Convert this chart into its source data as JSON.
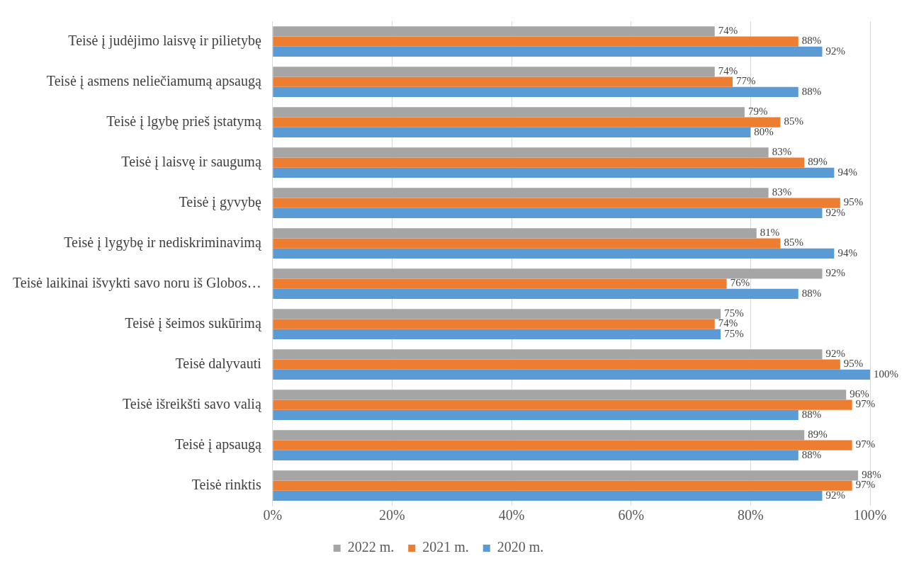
{
  "chart_data": {
    "type": "bar",
    "orientation": "horizontal",
    "categories": [
      "Teisė į judėjimo laisvę ir pilietybę",
      "Teisė į asmens neliečiamumą apsaugą",
      "Teisė į lgybę prieš įstatymą",
      "Teisė į laisvę ir saugumą",
      "Teisė į gyvybę",
      "Teisė į lygybę ir nediskriminavimą",
      "Teisė laikinai išvykti savo noru iš Globos…",
      "Teisė į šeimos sukūrimą",
      "Teisė dalyvauti",
      "Teisė išreikšti savo valią",
      "Teisė į apsaugą",
      "Teisė rinktis"
    ],
    "series": [
      {
        "name": "2022 m.",
        "color": "#a5a5a5",
        "values": [
          74,
          74,
          79,
          83,
          83,
          81,
          92,
          75,
          92,
          96,
          89,
          98
        ],
        "value_labels": [
          "74%",
          "74%",
          "79%",
          "83%",
          "83%",
          "81%",
          "92%",
          "75%",
          "92%",
          "96%",
          "89%",
          "98%"
        ]
      },
      {
        "name": "2021 m.",
        "color": "#ed7d31",
        "values": [
          88,
          77,
          85,
          89,
          95,
          85,
          76,
          74,
          95,
          97,
          97,
          97
        ],
        "value_labels": [
          "88%",
          "77%",
          "85%",
          "89%",
          "95%",
          "85%",
          "76%",
          "74%",
          "95%",
          "97%",
          "97%",
          "97%"
        ]
      },
      {
        "name": "2020 m.",
        "color": "#5b9bd5",
        "values": [
          92,
          88,
          80,
          94,
          92,
          94,
          88,
          75,
          100,
          88,
          88,
          92
        ],
        "value_labels": [
          "92%",
          "88%",
          "80%",
          "94%",
          "92%",
          "94%",
          "88%",
          "75%",
          "100%",
          "88%",
          "88%",
          "92%"
        ]
      }
    ],
    "xlim": [
      0,
      100
    ],
    "xticks": [
      {
        "value": 0,
        "label": "0%"
      },
      {
        "value": 20,
        "label": "20%"
      },
      {
        "value": 40,
        "label": "40%"
      },
      {
        "value": 60,
        "label": "60%"
      },
      {
        "value": 80,
        "label": "80%"
      },
      {
        "value": 100,
        "label": "100%"
      }
    ],
    "grid": "x",
    "legend": "bottom"
  }
}
